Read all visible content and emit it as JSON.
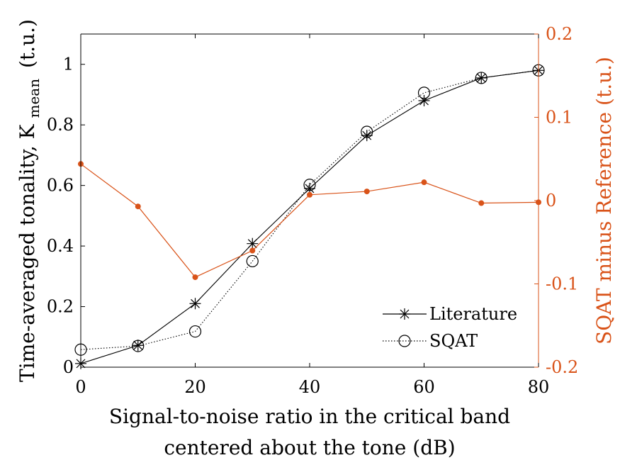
{
  "chart_data": {
    "type": "line",
    "x": [
      0,
      10,
      20,
      30,
      40,
      50,
      60,
      70,
      80
    ],
    "xlim": [
      0,
      80
    ],
    "xticks": [
      "0",
      "20",
      "40",
      "60",
      "80"
    ],
    "xlabel_line1": "Signal-to-noise ratio in the critical band",
    "xlabel_line2": "centered about the tone (dB)",
    "ylim_left": [
      0,
      1.1
    ],
    "yticks_left": [
      "0",
      "0.2",
      "0.4",
      "0.6",
      "0.8",
      "1"
    ],
    "ylabel_left_main": "Time-averaged tonality, K",
    "ylabel_left_sub": "mean",
    "ylabel_left_unit": "(t.u.)",
    "ylim_right": [
      -0.2,
      0.2
    ],
    "yticks_right": [
      "-0.2",
      "-0.1",
      "0",
      "0.1",
      "0.2"
    ],
    "ylabel_right": "SQAT minus Reference (t.u.)",
    "right_axis_color": "#d95319",
    "series": [
      {
        "name": "Literature",
        "axis": "left",
        "marker": "asterisk",
        "line": "solid",
        "color": "#000000",
        "values": [
          0.012,
          0.072,
          0.21,
          0.408,
          0.59,
          0.765,
          0.88,
          0.955,
          0.98
        ]
      },
      {
        "name": "SQAT",
        "axis": "left",
        "marker": "circle",
        "line": "dotted",
        "color": "#000000",
        "values": [
          0.058,
          0.07,
          0.118,
          0.35,
          0.602,
          0.777,
          0.906,
          0.955,
          0.98
        ]
      },
      {
        "axis": "right",
        "marker": "dot",
        "line": "solid",
        "color": "#d95319",
        "values": [
          0.044,
          -0.007,
          -0.092,
          -0.06,
          0.007,
          0.011,
          0.022,
          -0.003,
          -0.002
        ]
      }
    ],
    "legend_position": "bottom-right"
  }
}
